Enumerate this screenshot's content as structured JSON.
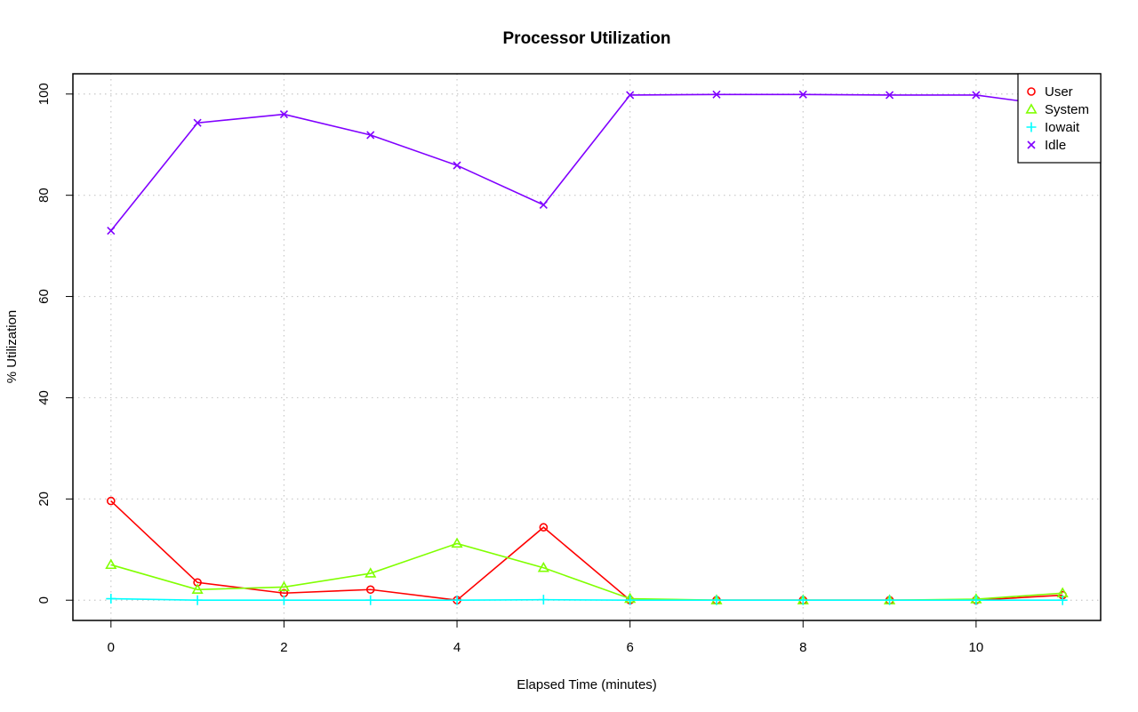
{
  "chart_data": {
    "type": "line",
    "title": "Processor Utilization",
    "xlabel": "Elapsed Time (minutes)",
    "ylabel": "% Utilization",
    "xlim": [
      -0.44,
      11.44
    ],
    "ylim": [
      -4,
      104
    ],
    "grid": true,
    "legend_position": "top-right",
    "x_ticks": [
      0,
      2,
      4,
      6,
      8,
      10
    ],
    "y_ticks": [
      0,
      20,
      40,
      60,
      80,
      100
    ],
    "x": [
      0,
      1,
      2,
      3,
      4,
      5,
      6,
      7,
      8,
      9,
      10,
      11
    ],
    "series": [
      {
        "name": "User",
        "color": "#ff0000",
        "marker": "circle",
        "values": [
          19.6,
          3.5,
          1.4,
          2.1,
          0.0,
          14.4,
          0.0,
          0.0,
          0.0,
          0.0,
          0.0,
          1.0
        ]
      },
      {
        "name": "System",
        "color": "#80ff00",
        "marker": "triangle",
        "values": [
          7.0,
          2.1,
          2.6,
          5.3,
          11.2,
          6.4,
          0.3,
          0.0,
          0.0,
          0.0,
          0.2,
          1.4
        ]
      },
      {
        "name": "Iowait",
        "color": "#00ffff",
        "marker": "plus",
        "values": [
          0.3,
          0.0,
          0.0,
          0.0,
          0.0,
          0.1,
          0.0,
          0.0,
          0.0,
          0.0,
          0.0,
          0.0
        ]
      },
      {
        "name": "Idle",
        "color": "#8000ff",
        "marker": "cross",
        "values": [
          73.0,
          94.3,
          96.0,
          91.9,
          85.9,
          78.1,
          99.8,
          99.9,
          99.9,
          99.8,
          99.8,
          97.5
        ]
      }
    ]
  }
}
